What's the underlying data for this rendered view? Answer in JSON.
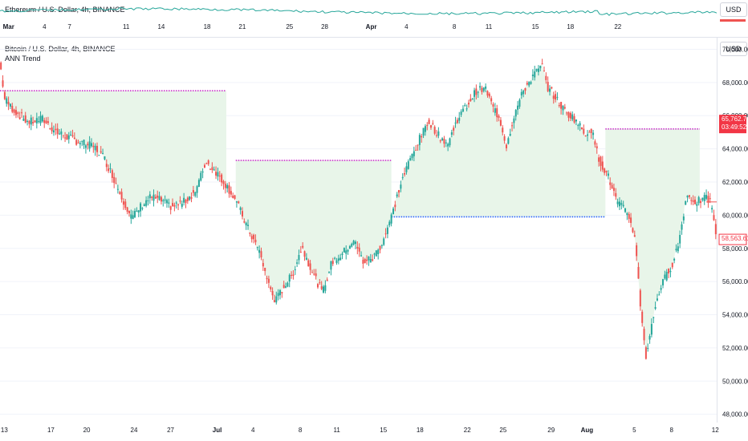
{
  "top_pane": {
    "title": "Ethereum / U.S. Dollar, 4h, BINANCE",
    "currency_button": "USD",
    "time_ticks": [
      {
        "label": "Mar",
        "bold": true,
        "pos": 0.012
      },
      {
        "label": "4",
        "bold": false,
        "pos": 0.062
      },
      {
        "label": "7",
        "bold": false,
        "pos": 0.097
      },
      {
        "label": "11",
        "bold": false,
        "pos": 0.176
      },
      {
        "label": "14",
        "bold": false,
        "pos": 0.225
      },
      {
        "label": "18",
        "bold": false,
        "pos": 0.289
      },
      {
        "label": "21",
        "bold": false,
        "pos": 0.338
      },
      {
        "label": "25",
        "bold": false,
        "pos": 0.404
      },
      {
        "label": "28",
        "bold": false,
        "pos": 0.453
      },
      {
        "label": "Apr",
        "bold": true,
        "pos": 0.518
      },
      {
        "label": "4",
        "bold": false,
        "pos": 0.567
      },
      {
        "label": "8",
        "bold": false,
        "pos": 0.634
      },
      {
        "label": "11",
        "bold": false,
        "pos": 0.682
      },
      {
        "label": "15",
        "bold": false,
        "pos": 0.747
      },
      {
        "label": "18",
        "bold": false,
        "pos": 0.796
      },
      {
        "label": "22",
        "bold": false,
        "pos": 0.862
      }
    ]
  },
  "main_pane": {
    "title": "Bitcoin / U.S. Dollar, 4h, BINANCE",
    "indicator": "ANN Trend",
    "currency_button": "USD",
    "price_ticks": [
      "70,000.00",
      "68,000.00",
      "66,000.00",
      "64,000.00",
      "62,000.00",
      "60,000.00",
      "58,000.00",
      "56,000.00",
      "54,000.00",
      "52,000.00",
      "50,000.00",
      "48,000.00"
    ],
    "current_price_label": "58,563.61",
    "highlight_price_label": "65,762.74",
    "highlight_time_label": "03:49:52",
    "time_ticks": [
      {
        "label": "13",
        "bold": false,
        "pos": 0.006
      },
      {
        "label": "17",
        "bold": false,
        "pos": 0.071
      },
      {
        "label": "20",
        "bold": false,
        "pos": 0.121
      },
      {
        "label": "24",
        "bold": false,
        "pos": 0.187
      },
      {
        "label": "27",
        "bold": false,
        "pos": 0.238
      },
      {
        "label": "Jul",
        "bold": true,
        "pos": 0.303
      },
      {
        "label": "4",
        "bold": false,
        "pos": 0.353
      },
      {
        "label": "8",
        "bold": false,
        "pos": 0.419
      },
      {
        "label": "11",
        "bold": false,
        "pos": 0.47
      },
      {
        "label": "15",
        "bold": false,
        "pos": 0.535
      },
      {
        "label": "18",
        "bold": false,
        "pos": 0.586
      },
      {
        "label": "22",
        "bold": false,
        "pos": 0.652
      },
      {
        "label": "25",
        "bold": false,
        "pos": 0.702
      },
      {
        "label": "29",
        "bold": false,
        "pos": 0.769
      },
      {
        "label": "Aug",
        "bold": true,
        "pos": 0.819
      },
      {
        "label": "5",
        "bold": false,
        "pos": 0.885
      },
      {
        "label": "8",
        "bold": false,
        "pos": 0.937
      },
      {
        "label": "12",
        "bold": false,
        "pos": 0.998
      }
    ]
  },
  "chart_data": {
    "type": "candlestick",
    "ylim": [
      47500,
      70700
    ],
    "y_ticks": [
      70000,
      68000,
      66000,
      64000,
      62000,
      60000,
      58000,
      56000,
      54000,
      52000,
      50000,
      48000
    ],
    "waypoints": [
      [
        0,
        69200
      ],
      [
        5,
        67000
      ],
      [
        15,
        66300
      ],
      [
        30,
        65600
      ],
      [
        45,
        65800
      ],
      [
        60,
        65000
      ],
      [
        80,
        64500
      ],
      [
        100,
        64100
      ],
      [
        110,
        63500
      ],
      [
        120,
        62300
      ],
      [
        130,
        61000
      ],
      [
        140,
        59800
      ],
      [
        150,
        60600
      ],
      [
        160,
        61100
      ],
      [
        170,
        60900
      ],
      [
        182,
        60500
      ],
      [
        195,
        60800
      ],
      [
        208,
        61500
      ],
      [
        218,
        63200
      ],
      [
        228,
        62700
      ],
      [
        240,
        61800
      ],
      [
        250,
        60900
      ],
      [
        262,
        59300
      ],
      [
        275,
        57800
      ],
      [
        285,
        55800
      ],
      [
        292,
        54800
      ],
      [
        300,
        55600
      ],
      [
        310,
        56400
      ],
      [
        320,
        58100
      ],
      [
        332,
        56500
      ],
      [
        342,
        55300
      ],
      [
        352,
        57200
      ],
      [
        362,
        57600
      ],
      [
        375,
        58500
      ],
      [
        385,
        57200
      ],
      [
        395,
        57400
      ],
      [
        405,
        58300
      ],
      [
        415,
        59900
      ],
      [
        425,
        61900
      ],
      [
        435,
        63400
      ],
      [
        445,
        64600
      ],
      [
        455,
        65700
      ],
      [
        465,
        64800
      ],
      [
        475,
        64300
      ],
      [
        485,
        65800
      ],
      [
        495,
        66600
      ],
      [
        505,
        67500
      ],
      [
        515,
        67600
      ],
      [
        522,
        66600
      ],
      [
        530,
        65800
      ],
      [
        537,
        64200
      ],
      [
        545,
        66000
      ],
      [
        555,
        67500
      ],
      [
        565,
        68400
      ],
      [
        575,
        69000
      ],
      [
        580,
        67800
      ],
      [
        590,
        67000
      ],
      [
        600,
        66200
      ],
      [
        610,
        65800
      ],
      [
        620,
        64900
      ],
      [
        627,
        65200
      ],
      [
        635,
        63400
      ],
      [
        645,
        62300
      ],
      [
        655,
        60700
      ],
      [
        665,
        60200
      ],
      [
        673,
        58800
      ],
      [
        680,
        54000
      ],
      [
        685,
        51500
      ],
      [
        690,
        53000
      ],
      [
        697,
        55100
      ],
      [
        705,
        56200
      ],
      [
        713,
        57100
      ],
      [
        720,
        58400
      ],
      [
        728,
        61200
      ],
      [
        738,
        60800
      ],
      [
        748,
        61000
      ],
      [
        753,
        60900
      ],
      [
        760,
        58600
      ]
    ],
    "reference_lines": [
      {
        "price": 67500,
        "x0": 0,
        "x1": 240,
        "color": "#cc33cc"
      },
      {
        "price": 63300,
        "x0": 250,
        "x1": 415,
        "color": "#cc33cc"
      },
      {
        "price": 59900,
        "x0": 415,
        "x1": 642,
        "color": "#2962ff"
      },
      {
        "price": 65200,
        "x0": 642,
        "x1": 742,
        "color": "#cc33cc"
      }
    ],
    "colors": {
      "up": "#26a69a",
      "down": "#ef5350",
      "fill": "#e8f5e9"
    }
  }
}
